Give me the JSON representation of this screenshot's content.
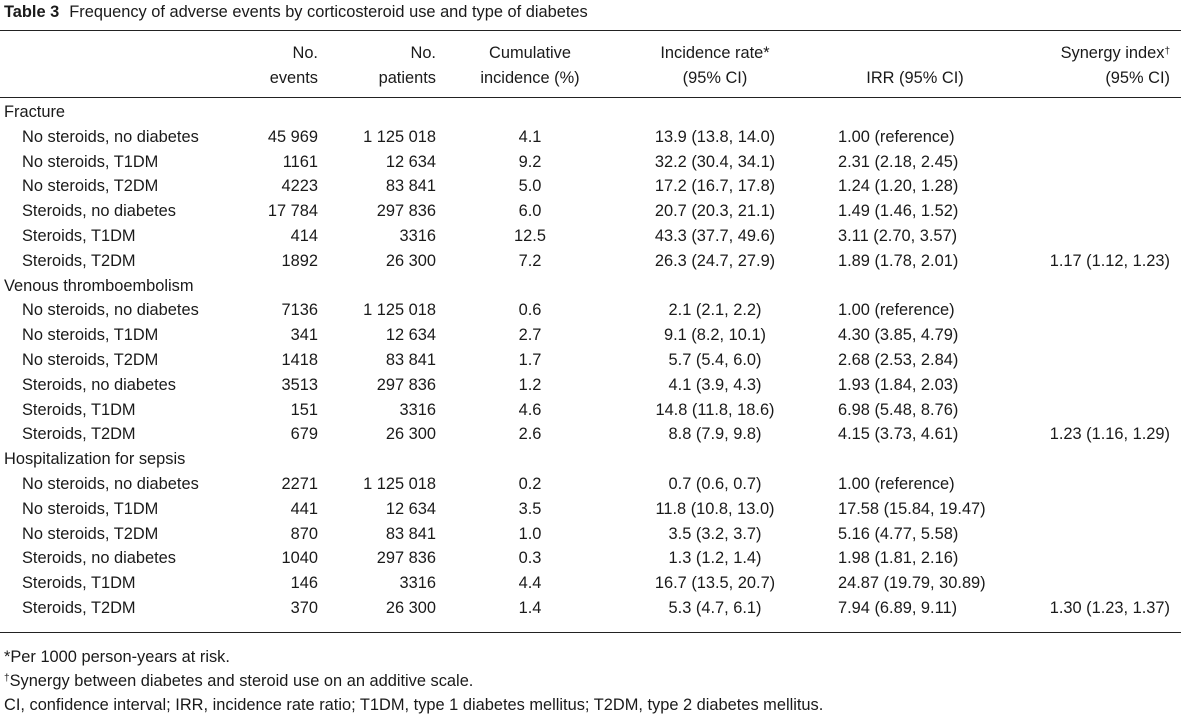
{
  "caption": {
    "label": "Table 3",
    "text": "Frequency of adverse events by corticosteroid use and type of diabetes"
  },
  "headers": {
    "events": [
      "No.",
      "events"
    ],
    "patients": [
      "No.",
      "patients"
    ],
    "cumulative": [
      "Cumulative",
      "incidence (%)"
    ],
    "incidence": [
      "Incidence rate*",
      "(95% CI)"
    ],
    "irr": "IRR (95% CI)",
    "synergy": [
      "Synergy index",
      "(95% CI)"
    ],
    "synergy_mark": "†"
  },
  "groups": [
    {
      "title": "Fracture",
      "rows": [
        {
          "category": "No steroids, no diabetes",
          "events": "45 969",
          "patients": "1 125 018",
          "cumulative": "4.1",
          "incidence": "13.9 (13.8, 14.0)",
          "irr": "1.00 (reference)",
          "synergy": ""
        },
        {
          "category": "No steroids, T1DM",
          "events": "1161",
          "patients": "12 634",
          "cumulative": "9.2",
          "incidence": "32.2 (30.4, 34.1)",
          "irr": "2.31 (2.18, 2.45)",
          "synergy": ""
        },
        {
          "category": "No steroids, T2DM",
          "events": "4223",
          "patients": "83 841",
          "cumulative": "5.0",
          "incidence": "17.2 (16.7, 17.8)",
          "irr": "1.24 (1.20, 1.28)",
          "synergy": ""
        },
        {
          "category": "Steroids, no diabetes",
          "events": "17 784",
          "patients": "297 836",
          "cumulative": "6.0",
          "incidence": "20.7 (20.3, 21.1)",
          "irr": "1.49 (1.46, 1.52)",
          "synergy": ""
        },
        {
          "category": "Steroids, T1DM",
          "events": "414",
          "patients": "3316",
          "cumulative": "12.5",
          "incidence": "43.3 (37.7, 49.6)",
          "irr": "3.11 (2.70, 3.57)",
          "synergy": ""
        },
        {
          "category": "Steroids, T2DM",
          "events": "1892",
          "patients": "26 300",
          "cumulative": "7.2",
          "incidence": "26.3 (24.7, 27.9)",
          "irr": "1.89 (1.78, 2.01)",
          "synergy": "1.17 (1.12, 1.23)"
        }
      ]
    },
    {
      "title": "Venous thromboembolism",
      "rows": [
        {
          "category": "No steroids, no diabetes",
          "events": "7136",
          "patients": "1 125 018",
          "cumulative": "0.6",
          "incidence": "2.1 (2.1, 2.2)",
          "irr": "1.00 (reference)",
          "synergy": ""
        },
        {
          "category": "No steroids, T1DM",
          "events": "341",
          "patients": "12 634",
          "cumulative": "2.7",
          "incidence": "9.1 (8.2, 10.1)",
          "irr": "4.30 (3.85, 4.79)",
          "synergy": ""
        },
        {
          "category": "No steroids, T2DM",
          "events": "1418",
          "patients": "83 841",
          "cumulative": "1.7",
          "incidence": "5.7 (5.4, 6.0)",
          "irr": "2.68 (2.53, 2.84)",
          "synergy": ""
        },
        {
          "category": "Steroids, no diabetes",
          "events": "3513",
          "patients": "297 836",
          "cumulative": "1.2",
          "incidence": "4.1 (3.9, 4.3)",
          "irr": "1.93 (1.84, 2.03)",
          "synergy": ""
        },
        {
          "category": "Steroids, T1DM",
          "events": "151",
          "patients": "3316",
          "cumulative": "4.6",
          "incidence": "14.8 (11.8, 18.6)",
          "irr": "6.98 (5.48, 8.76)",
          "synergy": ""
        },
        {
          "category": "Steroids, T2DM",
          "events": "679",
          "patients": "26 300",
          "cumulative": "2.6",
          "incidence": "8.8 (7.9, 9.8)",
          "irr": "4.15 (3.73, 4.61)",
          "synergy": "1.23 (1.16, 1.29)"
        }
      ]
    },
    {
      "title": "Hospitalization for sepsis",
      "rows": [
        {
          "category": "No steroids, no diabetes",
          "events": "2271",
          "patients": "1 125 018",
          "cumulative": "0.2",
          "incidence": "0.7 (0.6, 0.7)",
          "irr": "1.00 (reference)",
          "synergy": ""
        },
        {
          "category": "No steroids, T1DM",
          "events": "441",
          "patients": "12 634",
          "cumulative": "3.5",
          "incidence": "11.8 (10.8, 13.0)",
          "irr": "17.58 (15.84, 19.47)",
          "synergy": ""
        },
        {
          "category": "No steroids, T2DM",
          "events": "870",
          "patients": "83 841",
          "cumulative": "1.0",
          "incidence": "3.5 (3.2, 3.7)",
          "irr": "5.16 (4.77, 5.58)",
          "synergy": ""
        },
        {
          "category": "Steroids, no diabetes",
          "events": "1040",
          "patients": "297 836",
          "cumulative": "0.3",
          "incidence": "1.3 (1.2, 1.4)",
          "irr": "1.98 (1.81, 2.16)",
          "synergy": ""
        },
        {
          "category": "Steroids, T1DM",
          "events": "146",
          "patients": "3316",
          "cumulative": "4.4",
          "incidence": "16.7 (13.5, 20.7)",
          "irr": "24.87 (19.79, 30.89)",
          "synergy": ""
        },
        {
          "category": "Steroids, T2DM",
          "events": "370",
          "patients": "26 300",
          "cumulative": "1.4",
          "incidence": "5.3 (4.7, 6.1)",
          "irr": "7.94 (6.89, 9.11)",
          "synergy": "1.30 (1.23, 1.37)"
        }
      ]
    }
  ],
  "footnotes": {
    "per_1000": "*Per 1000 person-years at risk.",
    "synergy_mark": "†",
    "synergy_note": "Synergy between diabetes and steroid use on an additive scale.",
    "abbreviations": "CI, confidence interval; IRR, incidence rate ratio; T1DM, type 1 diabetes mellitus; T2DM, type 2 diabetes mellitus."
  }
}
